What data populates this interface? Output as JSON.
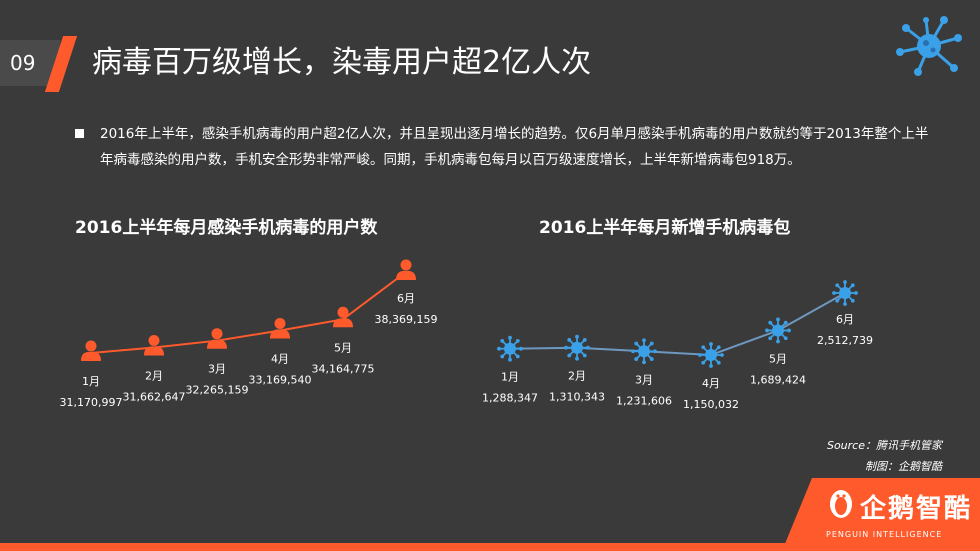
{
  "page_number": "09",
  "title": "病毒百万级增长，染毒用户超2亿人次",
  "summary": "2016年上半年，感染手机病毒的用户超2亿人次，并且呈现出逐月增长的趋势。仅6月单月感染手机病毒的用户数就约等于2013年整个上半年病毒感染的用户数，手机安全形势非常严峻。同期，手机病毒包每月以百万级速度增长，上半年新增病毒包918万。",
  "source": "Source：腾讯手机管家",
  "maker": "制图：企鹅智酷",
  "brand": {
    "name": "企鹅智酷",
    "sub": "PENGUIN INTELLIGENCE"
  },
  "colors": {
    "accent": "#ff5a2b",
    "virus": "#3aa0e8",
    "background": "#3a3a3a",
    "line2": "#6e98c0"
  },
  "chart_data": [
    {
      "type": "line",
      "title": "2016上半年每月感染手机病毒的用户数",
      "categories": [
        "1月",
        "2月",
        "3月",
        "4月",
        "5月",
        "6月"
      ],
      "values": [
        31170997,
        31662647,
        32265159,
        33169540,
        34164775,
        38369159
      ],
      "value_labels": [
        "31,170,997",
        "31,662,647",
        "32,265,159",
        "33,169,540",
        "34,164,775",
        "38,369,159"
      ],
      "marker": "person-icon",
      "color": "#ff5a2b"
    },
    {
      "type": "line",
      "title": "2016上半年每月新增手机病毒包",
      "categories": [
        "1月",
        "2月",
        "3月",
        "4月",
        "5月",
        "6月"
      ],
      "values": [
        1288347,
        1310343,
        1231606,
        1150032,
        1689424,
        2512739
      ],
      "value_labels": [
        "1,288,347",
        "1,310,343",
        "1,231,606",
        "1,150,032",
        "1,689,424",
        "2,512,739"
      ],
      "marker": "virus-icon",
      "color": "#6e98c0"
    }
  ]
}
